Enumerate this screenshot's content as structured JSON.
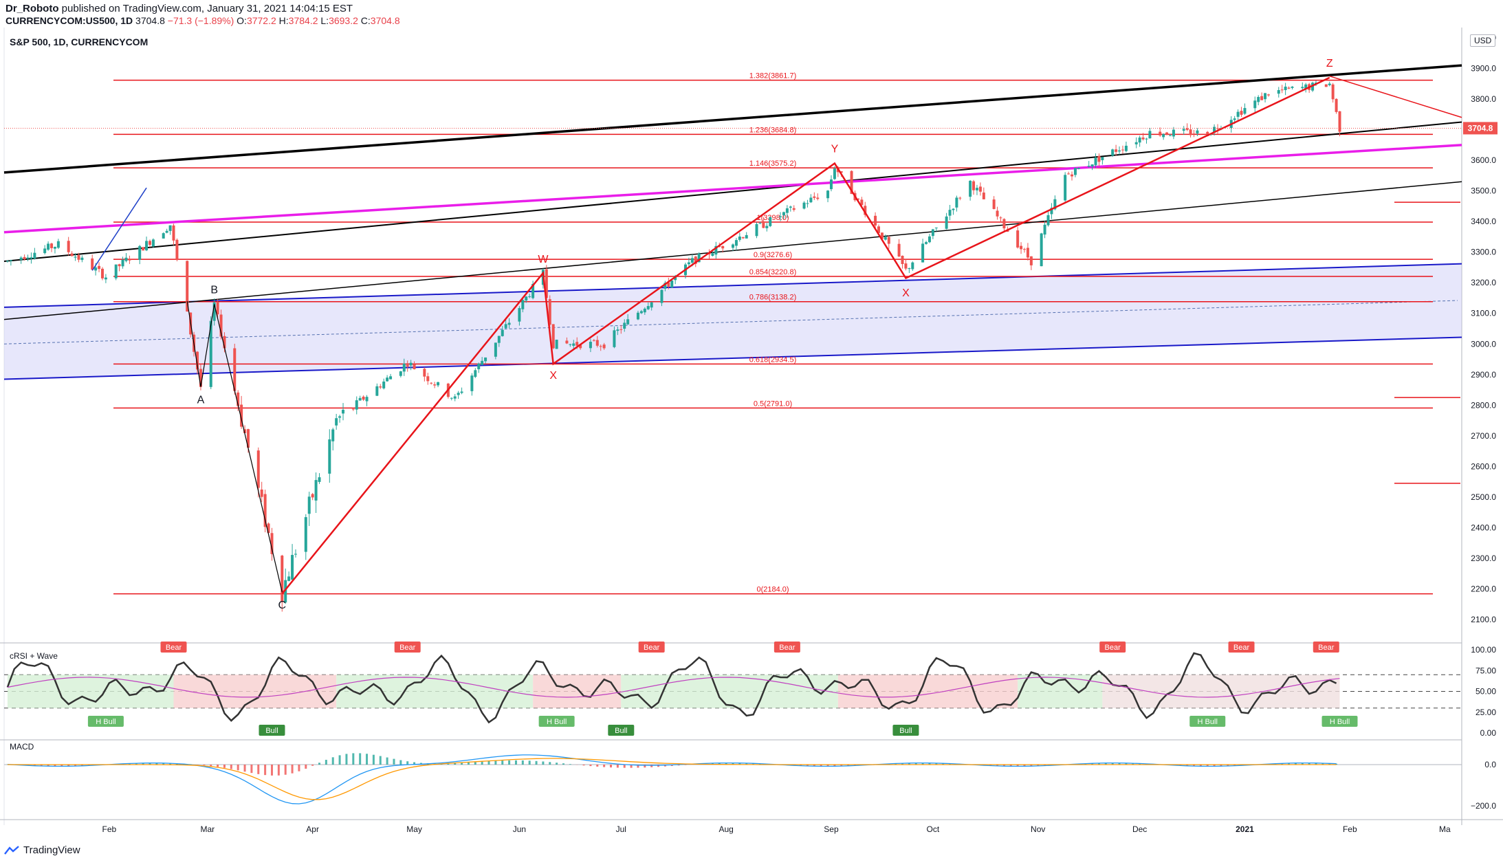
{
  "header": {
    "author": "Dr_Roboto",
    "published": "published on TradingView.com, January 31, 2021 14:04:15 EST",
    "symbol_line": "CURRENCYCOM:US500, 1D",
    "price": "3704.8",
    "change": "−71.3 (−1.89%)",
    "o_label": "O:",
    "o_value": "3772.2",
    "h_label": "H:",
    "h_value": "3784.2",
    "l_label": "L:",
    "l_value": "3693.2",
    "c_label": "C:",
    "c_value": "3704.8"
  },
  "chart_title": "S&P 500, 1D, CURRENCYCOM",
  "currency_label": "USD",
  "footer_brand": "TradingView",
  "colors": {
    "up": "#26a69a",
    "down": "#ef5350",
    "fib": "#e8141a",
    "trend_black": "#000000",
    "magenta": "#e91ee9",
    "channel_blue": "#1818c8",
    "channel_fill": "#c9c9f7",
    "last_price": "#ef5350"
  },
  "chart_data": [
    {
      "type": "candlestick",
      "title": "S&P 500, 1D, CURRENCYCOM",
      "y_axis": {
        "ticks": [
          2100,
          2200,
          2300,
          2400,
          2500,
          2600,
          2700,
          2800,
          2900,
          3000,
          3100,
          3200,
          3300,
          3400,
          3500,
          3600,
          3700,
          3800,
          3900,
          4000
        ],
        "range": [
          2070,
          4110
        ],
        "side": "right"
      },
      "x_axis": {
        "labels": [
          "Feb",
          "Mar",
          "Apr",
          "May",
          "Jun",
          "Jul",
          "Aug",
          "Sep",
          "Oct",
          "Nov",
          "Dec",
          "2021",
          "Feb",
          "Ma"
        ]
      },
      "price_path": [
        {
          "date": "2020-01-02",
          "close": 3270
        },
        {
          "date": "2020-01-17",
          "close": 3325
        },
        {
          "date": "2020-01-31",
          "close": 3220
        },
        {
          "date": "2020-02-19",
          "close": 3390
        },
        {
          "date": "2020-02-28",
          "close": 2860
        },
        {
          "date": "2020-03-03",
          "close": 3130
        },
        {
          "date": "2020-03-23",
          "close": 2190
        },
        {
          "date": "2020-04-08",
          "close": 2750
        },
        {
          "date": "2020-04-29",
          "close": 2940
        },
        {
          "date": "2020-05-13",
          "close": 2820
        },
        {
          "date": "2020-06-08",
          "close": 3230
        },
        {
          "date": "2020-06-11",
          "close": 3000
        },
        {
          "date": "2020-06-26",
          "close": 3000
        },
        {
          "date": "2020-07-22",
          "close": 3270
        },
        {
          "date": "2020-08-31",
          "close": 3500
        },
        {
          "date": "2020-09-02",
          "close": 3580
        },
        {
          "date": "2020-09-23",
          "close": 3240
        },
        {
          "date": "2020-10-12",
          "close": 3530
        },
        {
          "date": "2020-10-30",
          "close": 3270
        },
        {
          "date": "2020-11-09",
          "close": 3550
        },
        {
          "date": "2020-12-04",
          "close": 3690
        },
        {
          "date": "2020-12-21",
          "close": 3690
        },
        {
          "date": "2021-01-08",
          "close": 3820
        },
        {
          "date": "2021-01-26",
          "close": 3850
        },
        {
          "date": "2021-01-29",
          "close": 3704.8
        }
      ],
      "last_price": 3704.8,
      "fib_levels": [
        {
          "label": "1.382(3861.7)",
          "value": 3861.7
        },
        {
          "label": "1.236(3684.8)",
          "value": 3684.8
        },
        {
          "label": "1.146(3575.2)",
          "value": 3575.2
        },
        {
          "label": "1(3398.0)",
          "value": 3398.0
        },
        {
          "label": "0.9(3276.6)",
          "value": 3276.6
        },
        {
          "label": "0.854(3220.8)",
          "value": 3220.8
        },
        {
          "label": "0.786(3138.2)",
          "value": 3138.2
        },
        {
          "label": "0.618(2934.5)",
          "value": 2934.5
        },
        {
          "label": "0.5(2791.0)",
          "value": 2791.0
        },
        {
          "label": "0(2184.0)",
          "value": 2184.0
        }
      ],
      "wave_labels": [
        {
          "text": "A",
          "date": "2020-02-28",
          "value": 2860
        },
        {
          "text": "B",
          "date": "2020-03-03",
          "value": 3130
        },
        {
          "text": "C",
          "date": "2020-03-23",
          "value": 2190
        },
        {
          "text": "W",
          "date": "2020-06-08",
          "value": 3230
        },
        {
          "text": "X",
          "date": "2020-06-11",
          "value": 2940
        },
        {
          "text": "Y",
          "date": "2020-09-02",
          "value": 3590
        },
        {
          "text": "X",
          "date": "2020-09-23",
          "value": 3210
        },
        {
          "text": "Z",
          "date": "2021-01-26",
          "value": 3870
        }
      ]
    },
    {
      "type": "line",
      "title": "cRSI + Wave",
      "y_axis": {
        "ticks": [
          "100.00",
          "75.00",
          "50.00",
          "25.00",
          "0.00"
        ]
      },
      "bands": [
        30,
        50,
        70
      ],
      "signals": {
        "bear": [
          "2020-02-20",
          "2020-04-29",
          "2020-07-10",
          "2020-08-19",
          "2020-11-23",
          "2020-12-31",
          "2021-01-25"
        ],
        "bull": [
          "2020-03-20",
          "2020-07-01",
          "2020-09-23"
        ],
        "h_bull": [
          "2020-01-31",
          "2020-06-12",
          "2020-12-21",
          "2021-01-29"
        ]
      }
    },
    {
      "type": "bar",
      "title": "MACD",
      "y_axis": {
        "ticks": [
          "0.0",
          "−200.0"
        ]
      }
    }
  ]
}
